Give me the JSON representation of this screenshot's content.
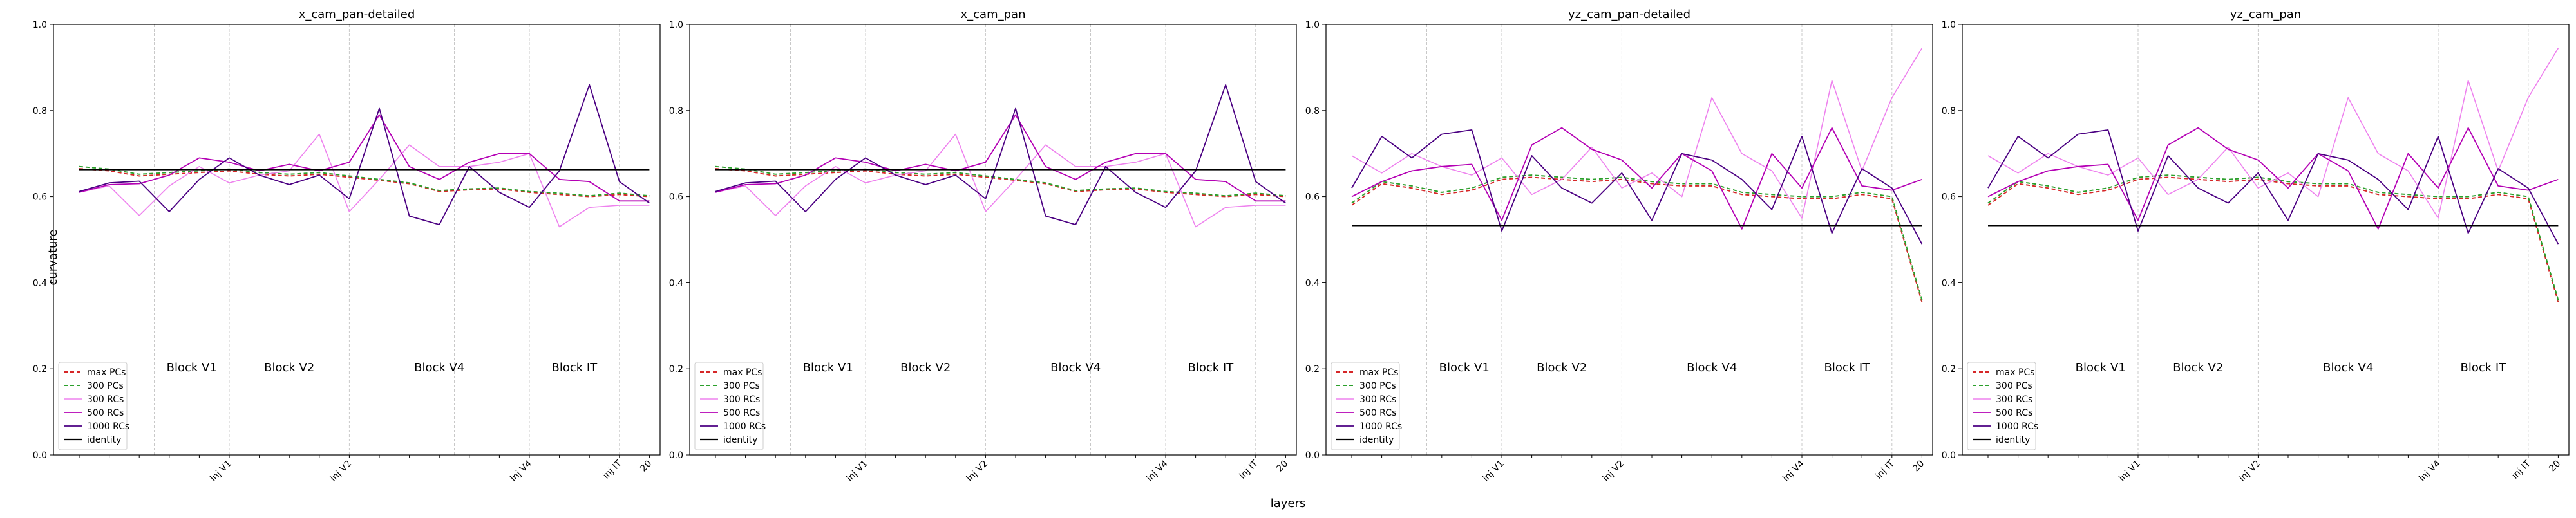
{
  "figure": {
    "ylabel": "curvature",
    "xlabel": "layers"
  },
  "chart_data": [
    {
      "type": "line",
      "title": "x_cam_pan-detailed",
      "ylim": [
        0,
        1.0
      ],
      "yticks": [
        "0.0",
        "0.2",
        "0.4",
        "0.6",
        "0.8",
        "1.0"
      ],
      "xticks": [
        {
          "label": "inj V1",
          "at": 5
        },
        {
          "label": "inj V2",
          "at": 9
        },
        {
          "label": "inj V4",
          "at": 15
        },
        {
          "label": "inj IT",
          "at": 18
        },
        {
          "label": "20",
          "at": 19
        }
      ],
      "block_lines": [
        2.5,
        5,
        9,
        12.5,
        15,
        18
      ],
      "block_labels": [
        {
          "text": "Block V1",
          "at": 3.75
        },
        {
          "text": "Block V2",
          "at": 7
        },
        {
          "text": "Block V4",
          "at": 12
        },
        {
          "text": "Block IT",
          "at": 16.5
        }
      ],
      "x": [
        0,
        1,
        2,
        3,
        4,
        5,
        6,
        7,
        8,
        9,
        10,
        11,
        12,
        13,
        14,
        15,
        16,
        17,
        18,
        19
      ],
      "series": [
        {
          "name": "max PCs",
          "color": "#d62728",
          "dash": "6,4",
          "width": 2,
          "values": [
            0.665,
            0.66,
            0.648,
            0.652,
            0.656,
            0.66,
            0.652,
            0.648,
            0.652,
            0.645,
            0.638,
            0.63,
            0.612,
            0.616,
            0.618,
            0.61,
            0.605,
            0.6,
            0.605,
            0.6
          ]
        },
        {
          "name": "300 PCs",
          "color": "#2ca02c",
          "dash": "6,4",
          "width": 2,
          "values": [
            0.67,
            0.664,
            0.652,
            0.656,
            0.66,
            0.664,
            0.656,
            0.652,
            0.656,
            0.648,
            0.64,
            0.632,
            0.614,
            0.618,
            0.62,
            0.612,
            0.608,
            0.602,
            0.608,
            0.602
          ]
        },
        {
          "name": "300 RCs",
          "color": "#ee82ee",
          "dash": "",
          "width": 1.6,
          "values": [
            0.61,
            0.625,
            0.556,
            0.625,
            0.67,
            0.632,
            0.65,
            0.66,
            0.745,
            0.565,
            0.64,
            0.72,
            0.67,
            0.67,
            0.68,
            0.7,
            0.53,
            0.575,
            0.58,
            0.58
          ]
        },
        {
          "name": "500 RCs",
          "color": "#b400b4",
          "dash": "",
          "width": 1.8,
          "values": [
            0.61,
            0.628,
            0.63,
            0.65,
            0.69,
            0.68,
            0.66,
            0.675,
            0.66,
            0.68,
            0.79,
            0.67,
            0.64,
            0.68,
            0.7,
            0.7,
            0.64,
            0.635,
            0.59,
            0.59
          ]
        },
        {
          "name": "1000 RCs",
          "color": "#4b0082",
          "dash": "",
          "width": 1.8,
          "values": [
            0.612,
            0.632,
            0.636,
            0.565,
            0.64,
            0.69,
            0.65,
            0.628,
            0.65,
            0.595,
            0.805,
            0.555,
            0.535,
            0.67,
            0.61,
            0.575,
            0.66,
            0.86,
            0.635,
            0.585
          ]
        },
        {
          "name": "identity",
          "color": "#000000",
          "dash": "",
          "width": 2.2,
          "values": [
            0.663,
            0.663,
            0.663,
            0.663,
            0.663,
            0.663,
            0.663,
            0.663,
            0.663,
            0.663,
            0.663,
            0.663,
            0.663,
            0.663,
            0.663,
            0.663,
            0.663,
            0.663,
            0.663,
            0.663
          ]
        }
      ],
      "legend_position": "lower-left"
    },
    {
      "type": "line",
      "title": "x_cam_pan",
      "ylim": [
        0,
        1.0
      ],
      "yticks": [
        "0.0",
        "0.2",
        "0.4",
        "0.6",
        "0.8",
        "1.0"
      ],
      "xticks": [
        {
          "label": "inj V1",
          "at": 5
        },
        {
          "label": "inj V2",
          "at": 9
        },
        {
          "label": "inj V4",
          "at": 15
        },
        {
          "label": "inj IT",
          "at": 18
        },
        {
          "label": "20",
          "at": 19
        }
      ],
      "block_lines": [
        2.5,
        5,
        9,
        12.5,
        15,
        18
      ],
      "block_labels": [
        {
          "text": "Block V1",
          "at": 3.75
        },
        {
          "text": "Block V2",
          "at": 7
        },
        {
          "text": "Block V4",
          "at": 12
        },
        {
          "text": "Block IT",
          "at": 16.5
        }
      ],
      "x": [
        0,
        1,
        2,
        3,
        4,
        5,
        6,
        7,
        8,
        9,
        10,
        11,
        12,
        13,
        14,
        15,
        16,
        17,
        18,
        19
      ],
      "series": [
        {
          "name": "max PCs",
          "color": "#d62728",
          "dash": "6,4",
          "width": 2,
          "values": [
            0.665,
            0.66,
            0.648,
            0.652,
            0.656,
            0.66,
            0.652,
            0.648,
            0.652,
            0.645,
            0.638,
            0.63,
            0.612,
            0.616,
            0.618,
            0.61,
            0.605,
            0.6,
            0.605,
            0.6
          ]
        },
        {
          "name": "300 PCs",
          "color": "#2ca02c",
          "dash": "6,4",
          "width": 2,
          "values": [
            0.67,
            0.664,
            0.652,
            0.656,
            0.66,
            0.664,
            0.656,
            0.652,
            0.656,
            0.648,
            0.64,
            0.632,
            0.614,
            0.618,
            0.62,
            0.612,
            0.608,
            0.602,
            0.608,
            0.602
          ]
        },
        {
          "name": "300 RCs",
          "color": "#ee82ee",
          "dash": "",
          "width": 1.6,
          "values": [
            0.61,
            0.625,
            0.556,
            0.625,
            0.67,
            0.632,
            0.65,
            0.66,
            0.745,
            0.565,
            0.64,
            0.72,
            0.67,
            0.67,
            0.68,
            0.7,
            0.53,
            0.575,
            0.58,
            0.58
          ]
        },
        {
          "name": "500 RCs",
          "color": "#b400b4",
          "dash": "",
          "width": 1.8,
          "values": [
            0.61,
            0.628,
            0.63,
            0.65,
            0.69,
            0.68,
            0.66,
            0.675,
            0.66,
            0.68,
            0.79,
            0.67,
            0.64,
            0.68,
            0.7,
            0.7,
            0.64,
            0.635,
            0.59,
            0.59
          ]
        },
        {
          "name": "1000 RCs",
          "color": "#4b0082",
          "dash": "",
          "width": 1.8,
          "values": [
            0.612,
            0.632,
            0.636,
            0.565,
            0.64,
            0.69,
            0.65,
            0.628,
            0.65,
            0.595,
            0.805,
            0.555,
            0.535,
            0.67,
            0.61,
            0.575,
            0.66,
            0.86,
            0.635,
            0.585
          ]
        },
        {
          "name": "identity",
          "color": "#000000",
          "dash": "",
          "width": 2.2,
          "values": [
            0.663,
            0.663,
            0.663,
            0.663,
            0.663,
            0.663,
            0.663,
            0.663,
            0.663,
            0.663,
            0.663,
            0.663,
            0.663,
            0.663,
            0.663,
            0.663,
            0.663,
            0.663,
            0.663,
            0.663
          ]
        }
      ],
      "legend_position": "lower-left"
    },
    {
      "type": "line",
      "title": "yz_cam_pan-detailed",
      "ylim": [
        0,
        1.0
      ],
      "yticks": [
        "0.0",
        "0.2",
        "0.4",
        "0.6",
        "0.8",
        "1.0"
      ],
      "xticks": [
        {
          "label": "inj V1",
          "at": 5
        },
        {
          "label": "inj V2",
          "at": 9
        },
        {
          "label": "inj V4",
          "at": 15
        },
        {
          "label": "inj IT",
          "at": 18
        },
        {
          "label": "20",
          "at": 19
        }
      ],
      "block_lines": [
        2.5,
        5,
        9,
        12.5,
        15,
        18
      ],
      "block_labels": [
        {
          "text": "Block V1",
          "at": 3.75
        },
        {
          "text": "Block V2",
          "at": 7
        },
        {
          "text": "Block V4",
          "at": 12
        },
        {
          "text": "Block IT",
          "at": 16.5
        }
      ],
      "x": [
        0,
        1,
        2,
        3,
        4,
        5,
        6,
        7,
        8,
        9,
        10,
        11,
        12,
        13,
        14,
        15,
        16,
        17,
        18,
        19
      ],
      "series": [
        {
          "name": "max PCs",
          "color": "#d62728",
          "dash": "6,4",
          "width": 2,
          "values": [
            0.58,
            0.63,
            0.62,
            0.605,
            0.615,
            0.64,
            0.645,
            0.64,
            0.635,
            0.64,
            0.63,
            0.625,
            0.625,
            0.605,
            0.6,
            0.595,
            0.595,
            0.605,
            0.595,
            0.355
          ]
        },
        {
          "name": "300 PCs",
          "color": "#2ca02c",
          "dash": "6,4",
          "width": 2,
          "values": [
            0.585,
            0.635,
            0.625,
            0.61,
            0.62,
            0.645,
            0.65,
            0.645,
            0.64,
            0.645,
            0.635,
            0.63,
            0.63,
            0.61,
            0.605,
            0.6,
            0.6,
            0.61,
            0.6,
            0.36
          ]
        },
        {
          "name": "300 RCs",
          "color": "#ee82ee",
          "dash": "",
          "width": 1.6,
          "values": [
            0.695,
            0.655,
            0.7,
            0.67,
            0.65,
            0.69,
            0.605,
            0.64,
            0.715,
            0.62,
            0.655,
            0.6,
            0.83,
            0.7,
            0.66,
            0.55,
            0.87,
            0.66,
            0.83,
            0.945
          ]
        },
        {
          "name": "500 RCs",
          "color": "#b400b4",
          "dash": "",
          "width": 1.8,
          "values": [
            0.6,
            0.635,
            0.66,
            0.67,
            0.675,
            0.545,
            0.72,
            0.76,
            0.71,
            0.685,
            0.62,
            0.7,
            0.66,
            0.525,
            0.7,
            0.62,
            0.76,
            0.625,
            0.615,
            0.64
          ]
        },
        {
          "name": "1000 RCs",
          "color": "#4b0082",
          "dash": "",
          "width": 1.8,
          "values": [
            0.62,
            0.74,
            0.69,
            0.745,
            0.755,
            0.52,
            0.695,
            0.62,
            0.585,
            0.655,
            0.545,
            0.7,
            0.685,
            0.64,
            0.57,
            0.74,
            0.515,
            0.665,
            0.62,
            0.49
          ]
        },
        {
          "name": "identity",
          "color": "#000000",
          "dash": "",
          "width": 2.2,
          "values": [
            0.533,
            0.533,
            0.533,
            0.533,
            0.533,
            0.533,
            0.533,
            0.533,
            0.533,
            0.533,
            0.533,
            0.533,
            0.533,
            0.533,
            0.533,
            0.533,
            0.533,
            0.533,
            0.533,
            0.533
          ]
        }
      ],
      "legend_position": "lower-left"
    },
    {
      "type": "line",
      "title": "yz_cam_pan",
      "ylim": [
        0,
        1.0
      ],
      "yticks": [
        "0.0",
        "0.2",
        "0.4",
        "0.6",
        "0.8",
        "1.0"
      ],
      "xticks": [
        {
          "label": "inj V1",
          "at": 5
        },
        {
          "label": "inj V2",
          "at": 9
        },
        {
          "label": "inj V4",
          "at": 15
        },
        {
          "label": "inj IT",
          "at": 18
        },
        {
          "label": "20",
          "at": 19
        }
      ],
      "block_lines": [
        2.5,
        5,
        9,
        12.5,
        15,
        18
      ],
      "block_labels": [
        {
          "text": "Block V1",
          "at": 3.75
        },
        {
          "text": "Block V2",
          "at": 7
        },
        {
          "text": "Block V4",
          "at": 12
        },
        {
          "text": "Block IT",
          "at": 16.5
        }
      ],
      "x": [
        0,
        1,
        2,
        3,
        4,
        5,
        6,
        7,
        8,
        9,
        10,
        11,
        12,
        13,
        14,
        15,
        16,
        17,
        18,
        19
      ],
      "series": [
        {
          "name": "max PCs",
          "color": "#d62728",
          "dash": "6,4",
          "width": 2,
          "values": [
            0.58,
            0.63,
            0.62,
            0.605,
            0.615,
            0.64,
            0.645,
            0.64,
            0.635,
            0.64,
            0.63,
            0.625,
            0.625,
            0.605,
            0.6,
            0.595,
            0.595,
            0.605,
            0.595,
            0.355
          ]
        },
        {
          "name": "300 PCs",
          "color": "#2ca02c",
          "dash": "6,4",
          "width": 2,
          "values": [
            0.585,
            0.635,
            0.625,
            0.61,
            0.62,
            0.645,
            0.65,
            0.645,
            0.64,
            0.645,
            0.635,
            0.63,
            0.63,
            0.61,
            0.605,
            0.6,
            0.6,
            0.61,
            0.6,
            0.36
          ]
        },
        {
          "name": "300 RCs",
          "color": "#ee82ee",
          "dash": "",
          "width": 1.6,
          "values": [
            0.695,
            0.655,
            0.7,
            0.67,
            0.65,
            0.69,
            0.605,
            0.64,
            0.715,
            0.62,
            0.655,
            0.6,
            0.83,
            0.7,
            0.66,
            0.55,
            0.87,
            0.66,
            0.83,
            0.945
          ]
        },
        {
          "name": "500 RCs",
          "color": "#b400b4",
          "dash": "",
          "width": 1.8,
          "values": [
            0.6,
            0.635,
            0.66,
            0.67,
            0.675,
            0.545,
            0.72,
            0.76,
            0.71,
            0.685,
            0.62,
            0.7,
            0.66,
            0.525,
            0.7,
            0.62,
            0.76,
            0.625,
            0.615,
            0.64
          ]
        },
        {
          "name": "1000 RCs",
          "color": "#4b0082",
          "dash": "",
          "width": 1.8,
          "values": [
            0.62,
            0.74,
            0.69,
            0.745,
            0.755,
            0.52,
            0.695,
            0.62,
            0.585,
            0.655,
            0.545,
            0.7,
            0.685,
            0.64,
            0.57,
            0.74,
            0.515,
            0.665,
            0.62,
            0.49
          ]
        },
        {
          "name": "identity",
          "color": "#000000",
          "dash": "",
          "width": 2.2,
          "values": [
            0.533,
            0.533,
            0.533,
            0.533,
            0.533,
            0.533,
            0.533,
            0.533,
            0.533,
            0.533,
            0.533,
            0.533,
            0.533,
            0.533,
            0.533,
            0.533,
            0.533,
            0.533,
            0.533,
            0.533
          ]
        }
      ],
      "legend_position": "lower-left"
    }
  ]
}
